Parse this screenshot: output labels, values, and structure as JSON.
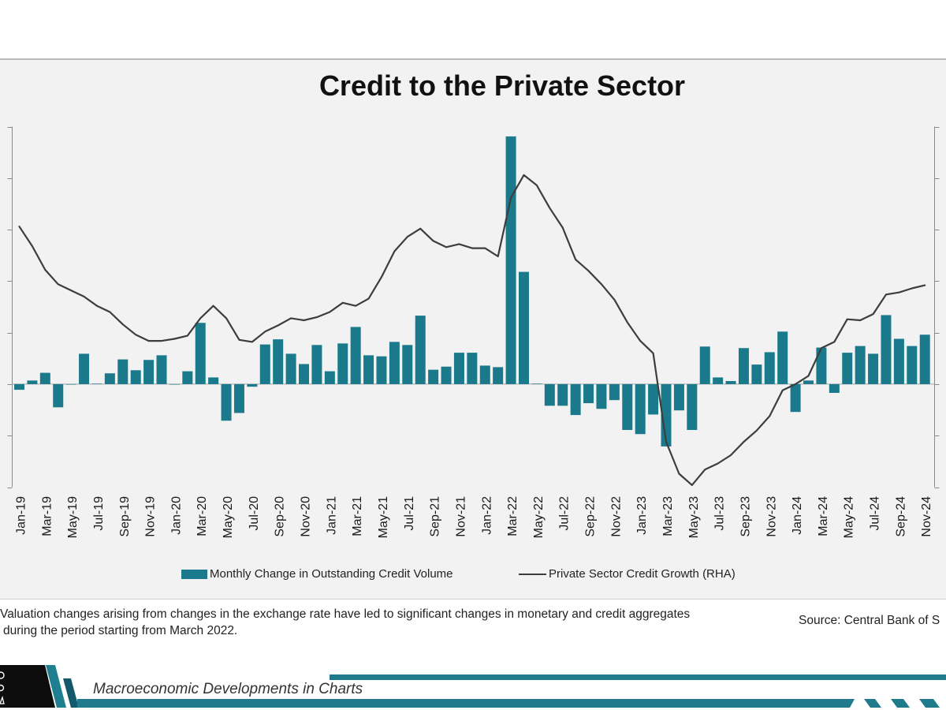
{
  "chart_data": {
    "type": "bar",
    "title": "Credit to the Private Sector",
    "xlabel": "",
    "ylabel": "",
    "categories": [
      "Jan-19",
      "Feb-19",
      "Mar-19",
      "Apr-19",
      "May-19",
      "Jun-19",
      "Jul-19",
      "Aug-19",
      "Sep-19",
      "Oct-19",
      "Nov-19",
      "Dec-19",
      "Jan-20",
      "Feb-20",
      "Mar-20",
      "Apr-20",
      "May-20",
      "Jun-20",
      "Jul-20",
      "Aug-20",
      "Sep-20",
      "Oct-20",
      "Nov-20",
      "Dec-20",
      "Jan-21",
      "Feb-21",
      "Mar-21",
      "Apr-21",
      "May-21",
      "Jun-21",
      "Jul-21",
      "Aug-21",
      "Sep-21",
      "Oct-21",
      "Nov-21",
      "Dec-21",
      "Jan-22",
      "Feb-22",
      "Mar-22",
      "Apr-22",
      "May-22",
      "Jun-22",
      "Jul-22",
      "Aug-22",
      "Sep-22",
      "Oct-22",
      "Nov-22",
      "Dec-22",
      "Jan-23",
      "Feb-23",
      "Mar-23",
      "Apr-23",
      "May-23",
      "Jun-23",
      "Jul-23",
      "Aug-23",
      "Sep-23",
      "Oct-23",
      "Nov-23",
      "Dec-23",
      "Jan-24",
      "Feb-24",
      "Mar-24",
      "Apr-24",
      "May-24",
      "Jun-24",
      "Jul-24",
      "Aug-24",
      "Sep-24",
      "Oct-24",
      "Nov-24"
    ],
    "x_tick_step": 2,
    "series": [
      {
        "name": "Monthly Change in Outstanding Credit Volume",
        "type": "bar",
        "axis": "left",
        "color": "#1a7a8c",
        "values": [
          -11,
          7,
          22,
          -45,
          0,
          59,
          1,
          21,
          48,
          27,
          47,
          56,
          0,
          25,
          119,
          13,
          -71,
          -56,
          -5,
          77,
          87,
          59,
          39,
          76,
          25,
          79,
          111,
          56,
          54,
          82,
          76,
          133,
          28,
          34,
          61,
          61,
          36,
          33,
          481,
          218,
          1,
          -42,
          -42,
          -60,
          -37,
          -48,
          -31,
          -89,
          -97,
          -59,
          -121,
          -51,
          -89,
          73,
          13,
          6,
          70,
          38,
          62,
          102,
          -54,
          7,
          71,
          -17,
          61,
          74,
          59,
          134,
          88,
          74,
          96
        ]
      },
      {
        "name": "Private Sector Credit Growth (RHA)",
        "type": "line",
        "axis": "right",
        "color": "#3d3d3d",
        "values": [
          15.3,
          13.4,
          11.1,
          9.7,
          9.1,
          8.5,
          7.6,
          7.0,
          5.8,
          4.8,
          4.2,
          4.2,
          4.4,
          4.7,
          6.4,
          7.6,
          6.4,
          4.3,
          4.1,
          5.1,
          5.7,
          6.4,
          6.2,
          6.5,
          7.0,
          7.9,
          7.6,
          8.3,
          10.4,
          12.9,
          14.3,
          15.1,
          13.9,
          13.3,
          13.6,
          13.2,
          13.2,
          12.4,
          18.1,
          20.3,
          19.3,
          17.1,
          15.2,
          12.1,
          11.0,
          9.7,
          8.2,
          6.0,
          4.2,
          3.0,
          -5.6,
          -8.7,
          -9.8,
          -8.3,
          -7.7,
          -6.9,
          -5.6,
          -4.5,
          -3.1,
          -0.6,
          0.0,
          0.8,
          3.5,
          4.1,
          6.3,
          6.2,
          6.8,
          8.7,
          8.9,
          9.3,
          9.6
        ]
      }
    ],
    "ylim": [
      -200,
      500
    ],
    "y_tick_step": 100,
    "ylim_right": [
      -10,
      25
    ],
    "y_right_tick_step": 5,
    "grid": false,
    "legend": "bottom-center",
    "colors": {
      "panel": "#f2f2f2",
      "axis": "#8a8a8a",
      "zero_line": "#a8a8a8"
    }
  },
  "footnote": {
    "line1": "Valuation changes arising from changes in the exchange rate have led to significant changes in monetary and credit aggregates",
    "line2": "during the period starting from March 2022."
  },
  "source": "Source: Central Bank of S",
  "footer": {
    "publication": "Macroeconomic Developments in Charts",
    "accent": "#1f7a8c",
    "block": "#0d0d0d"
  }
}
